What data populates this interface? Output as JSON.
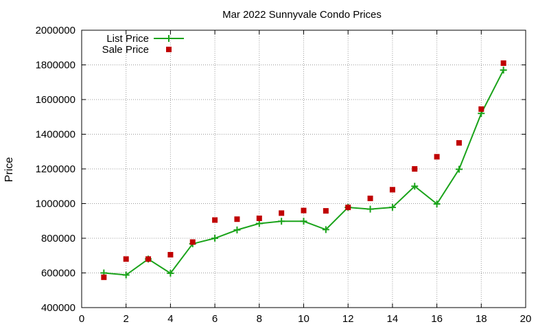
{
  "chart_data": {
    "type": "line",
    "title": "Mar 2022 Sunnyvale Condo Prices",
    "xlabel": "",
    "ylabel": "Price",
    "xlim": [
      0,
      20
    ],
    "ylim": [
      400000,
      2000000
    ],
    "xticks": [
      0,
      2,
      4,
      6,
      8,
      10,
      12,
      14,
      16,
      18,
      20
    ],
    "yticks": [
      400000,
      600000,
      800000,
      1000000,
      1200000,
      1400000,
      1600000,
      1800000,
      2000000
    ],
    "grid": true,
    "legend_position": "top-left",
    "x": [
      1,
      2,
      3,
      4,
      5,
      6,
      7,
      8,
      9,
      10,
      11,
      12,
      13,
      14,
      15,
      16,
      17,
      18,
      19
    ],
    "series": [
      {
        "name": "List Price",
        "style": "line-points",
        "marker": "plus",
        "color": "#1aa31a",
        "values": [
          600000,
          588000,
          680000,
          598000,
          768000,
          800000,
          848000,
          885000,
          898000,
          898000,
          850000,
          978000,
          968000,
          978000,
          1100000,
          998000,
          1198000,
          1520000,
          1770000
        ]
      },
      {
        "name": "Sale Price",
        "style": "points",
        "marker": "square",
        "color": "#c00000",
        "values": [
          575000,
          680000,
          680000,
          705000,
          778000,
          905000,
          910000,
          915000,
          945000,
          960000,
          958000,
          978000,
          1030000,
          1080000,
          1200000,
          1270000,
          1350000,
          1545000,
          1810000
        ]
      }
    ]
  }
}
